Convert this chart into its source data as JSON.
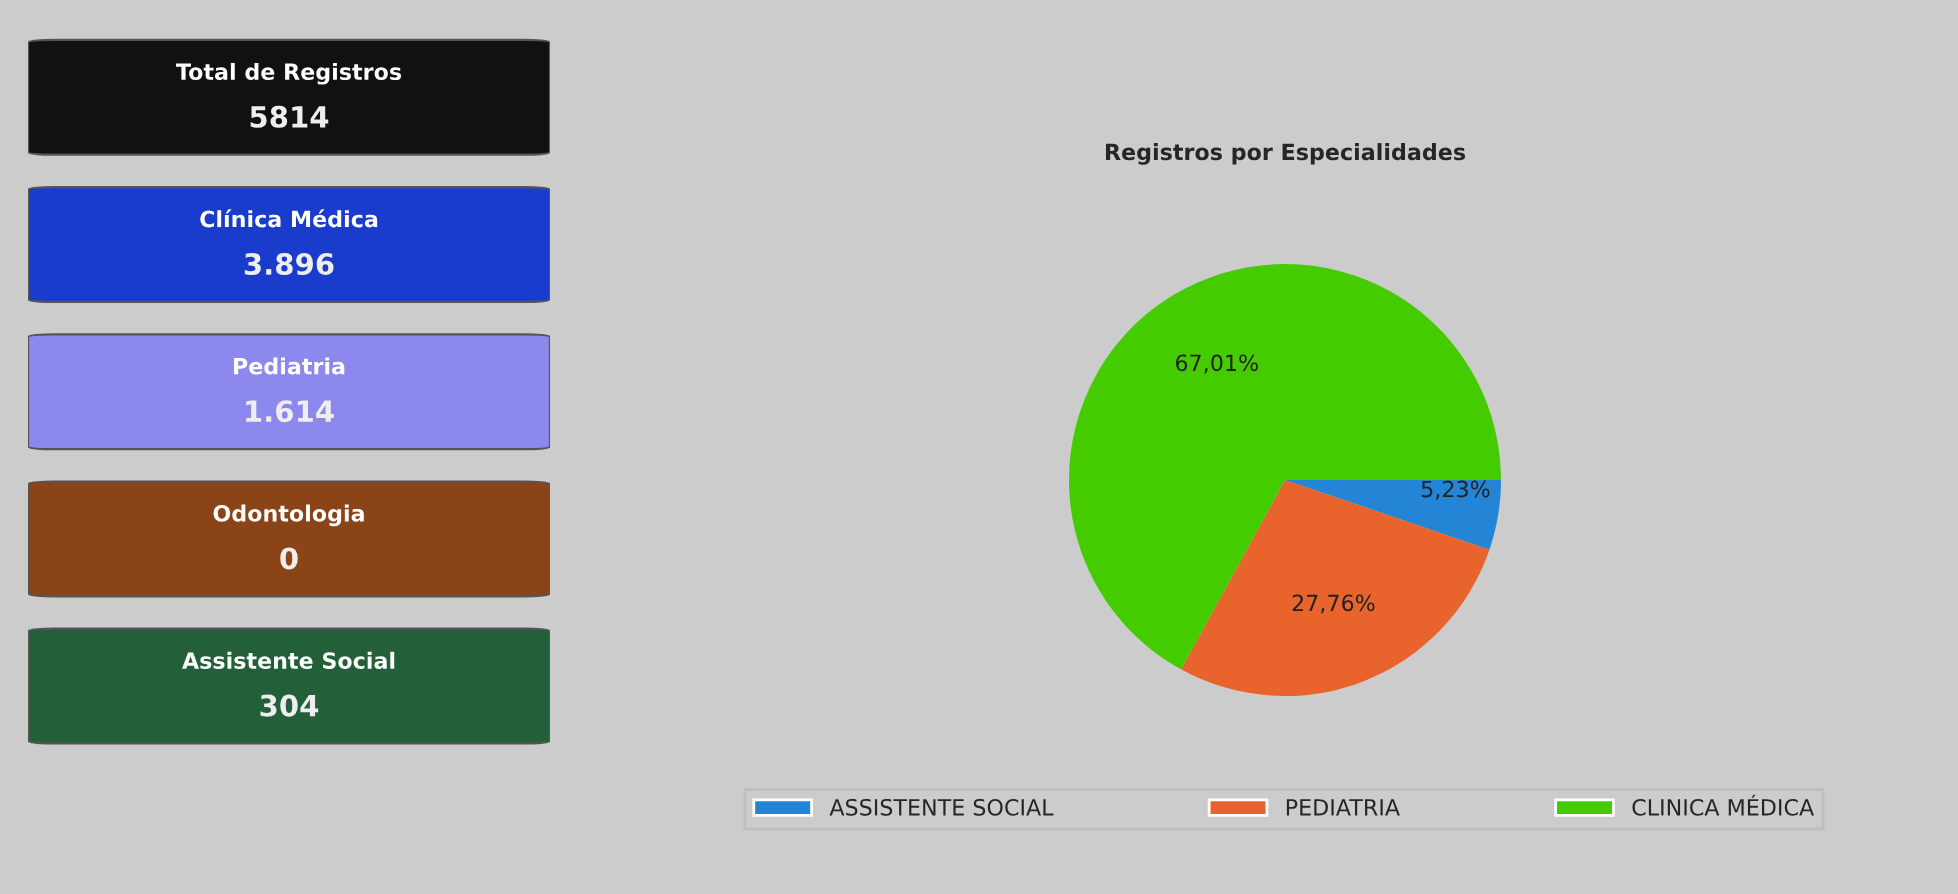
{
  "chart_data": [
    {
      "type": "other",
      "categories": [
        "Total de Registros",
        "Clínica Médica",
        "Pediatria",
        "Odontologia",
        "Assistente Social"
      ],
      "value_labels": [
        "5814",
        "3.896",
        "1.614",
        "0",
        "304"
      ],
      "colors": [
        "#111111",
        "#1a3ccc",
        "#8c88ee",
        "#8a4418",
        "#23603a"
      ]
    },
    {
      "type": "pie",
      "title": "Registros por Especialidades",
      "categories": [
        "ASSISTENTE SOCIAL",
        "PEDIATRIA",
        "CLINICA MÉDICA"
      ],
      "values": [
        5.23,
        27.76,
        67.01
      ],
      "value_labels": [
        "5,23%",
        "27,76%",
        "67,01%"
      ],
      "colors": [
        "#2485d6",
        "#e8642c",
        "#44cc00"
      ],
      "legend": "bottom"
    }
  ]
}
